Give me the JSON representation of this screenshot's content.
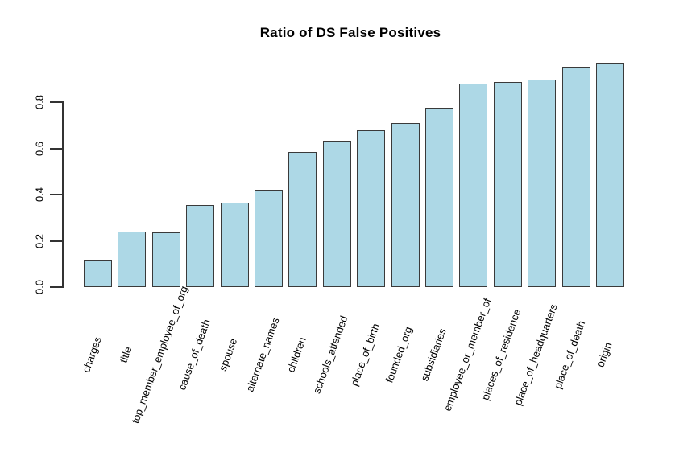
{
  "chart_data": {
    "type": "bar",
    "title": "Ratio of DS False Positives",
    "xlabel": "",
    "ylabel": "",
    "categories": [
      "charges",
      "title",
      "top_member_employee_of_org",
      "cause_of_death",
      "spouse",
      "alternate_names",
      "children",
      "schools_attended",
      "place_of_birth",
      "founded_org",
      "subsidiaries",
      "employee_or_member_of",
      "places_of_residence",
      "place_of_headquarters",
      "place_of_death",
      "origin"
    ],
    "values": [
      0.118,
      0.242,
      0.237,
      0.355,
      0.366,
      0.423,
      0.585,
      0.633,
      0.679,
      0.71,
      0.776,
      0.881,
      0.888,
      0.898,
      0.956,
      0.972
    ],
    "ylim": [
      0,
      1.0
    ],
    "yticks": [
      0.0,
      0.2,
      0.4,
      0.6,
      0.8
    ],
    "ytick_labels": [
      "0.0",
      "0.2",
      "0.4",
      "0.6",
      "0.8"
    ],
    "grid": false,
    "legend": "none",
    "x_label_rotation_deg": 70,
    "bar_fill_color": "#ADD8E6",
    "bar_border_color": "#3A3A3A",
    "axis_color": "#333333",
    "background_color": "#FFFFFF"
  }
}
